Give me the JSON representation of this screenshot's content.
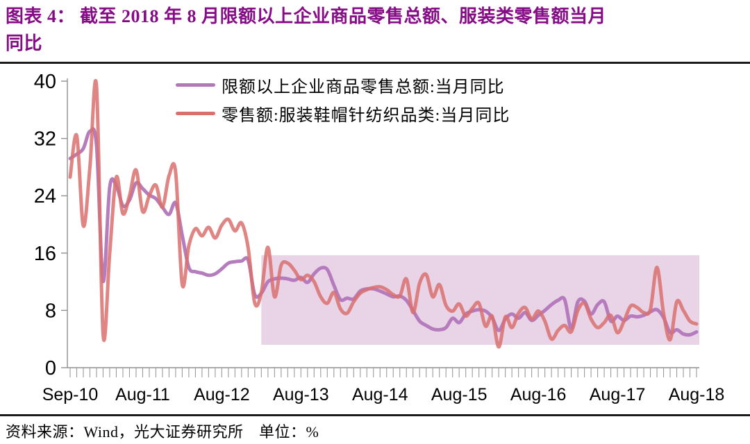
{
  "figure": {
    "title_line1": "图表 4： 截至 2018 年 8 月限额以上企业商品零售总额、服装类零售额当月",
    "title_line2": "同比",
    "title_color": "#860b86",
    "source_note": "资料来源：Wind，光大证券研究所　单位：%"
  },
  "chart_data": {
    "type": "line",
    "title": "截至2018年8月限额以上企业商品零售总额、服装类零售额当月同比",
    "ylabel": "%",
    "ylim": [
      0,
      40
    ],
    "y_ticks": [
      0,
      8,
      16,
      24,
      32,
      40
    ],
    "grid": false,
    "legend_position": "top-center",
    "x_axis_ticks": [
      "Sep-10",
      "Aug-11",
      "Aug-12",
      "Aug-13",
      "Aug-14",
      "Aug-15",
      "Aug-16",
      "Aug-17",
      "Aug-18"
    ],
    "x": [
      "Sep-10",
      "Oct-10",
      "Nov-10",
      "Dec-10",
      "Jan-11",
      "Feb-11",
      "Mar-11",
      "Apr-11",
      "May-11",
      "Jun-11",
      "Jul-11",
      "Aug-11",
      "Sep-11",
      "Oct-11",
      "Nov-11",
      "Dec-11",
      "Jan-12",
      "Feb-12",
      "Mar-12",
      "Apr-12",
      "May-12",
      "Jun-12",
      "Jul-12",
      "Aug-12",
      "Sep-12",
      "Oct-12",
      "Nov-12",
      "Dec-12",
      "Jan-13",
      "Feb-13",
      "Mar-13",
      "Apr-13",
      "May-13",
      "Jun-13",
      "Jul-13",
      "Aug-13",
      "Sep-13",
      "Oct-13",
      "Nov-13",
      "Dec-13",
      "Jan-14",
      "Feb-14",
      "Mar-14",
      "Apr-14",
      "May-14",
      "Jun-14",
      "Jul-14",
      "Aug-14",
      "Sep-14",
      "Oct-14",
      "Nov-14",
      "Dec-14",
      "Jan-15",
      "Feb-15",
      "Mar-15",
      "Apr-15",
      "May-15",
      "Jun-15",
      "Jul-15",
      "Aug-15",
      "Sep-15",
      "Oct-15",
      "Nov-15",
      "Dec-15",
      "Jan-16",
      "Feb-16",
      "Mar-16",
      "Apr-16",
      "May-16",
      "Jun-16",
      "Jul-16",
      "Aug-16",
      "Sep-16",
      "Oct-16",
      "Nov-16",
      "Dec-16",
      "Jan-17",
      "Feb-17",
      "Mar-17",
      "Apr-17",
      "May-17",
      "Jun-17",
      "Jul-17",
      "Aug-17",
      "Sep-17",
      "Oct-17",
      "Nov-17",
      "Dec-17",
      "Jan-18",
      "Feb-18",
      "Mar-18",
      "Apr-18",
      "May-18",
      "Jun-18",
      "Jul-18",
      "Aug-18"
    ],
    "series": [
      {
        "name": "限额以上企业商品零售总额:当月同比",
        "color": "#b276b9",
        "values": [
          29.2,
          29.8,
          30.6,
          33.0,
          31.0,
          12.1,
          25.2,
          25.4,
          22.6,
          23.4,
          25.8,
          25.0,
          24.1,
          23.6,
          22.4,
          21.4,
          23.0,
          18.5,
          14.0,
          13.4,
          13.2,
          12.9,
          13.1,
          13.8,
          14.6,
          14.8,
          14.9,
          15.0,
          10.2,
          10.4,
          12.0,
          12.4,
          12.5,
          12.4,
          12.2,
          12.6,
          11.9,
          13.1,
          13.9,
          13.7,
          11.5,
          9.5,
          9.7,
          9.6,
          10.7,
          11.0,
          11.0,
          10.7,
          10.3,
          9.9,
          10.0,
          9.4,
          8.0,
          6.5,
          5.9,
          5.4,
          5.3,
          5.6,
          6.9,
          6.3,
          7.5,
          7.9,
          8.1,
          7.9,
          7.0,
          5.2,
          6.8,
          7.5,
          6.9,
          7.7,
          6.6,
          7.3,
          8.0,
          8.8,
          9.4,
          9.5,
          5.5,
          9.2,
          9.3,
          7.5,
          8.8,
          9.2,
          6.5,
          7.2,
          6.6,
          7.2,
          7.1,
          7.3,
          7.8,
          8.1,
          7.0,
          4.9,
          5.3,
          4.7,
          4.6,
          5.0
        ]
      },
      {
        "name": "零售额:服装鞋帽针纺织品类:当月同比",
        "color": "#d9706e",
        "values": [
          26.6,
          32.4,
          19.8,
          28.0,
          39.3,
          4.6,
          16.0,
          26.6,
          21.5,
          24.0,
          27.6,
          21.8,
          24.0,
          25.5,
          22.4,
          26.8,
          27.3,
          11.6,
          17.0,
          19.4,
          18.4,
          19.6,
          18.1,
          19.9,
          20.7,
          19.1,
          20.2,
          16.7,
          9.0,
          10.5,
          16.8,
          9.9,
          14.3,
          14.6,
          13.6,
          12.3,
          12.9,
          12.0,
          9.9,
          9.0,
          10.5,
          8.2,
          7.6,
          9.2,
          10.4,
          10.9,
          11.2,
          11.3,
          10.9,
          10.2,
          10.0,
          12.4,
          7.7,
          11.8,
          13.0,
          9.9,
          11.6,
          8.7,
          7.9,
          8.9,
          7.2,
          8.3,
          9.0,
          5.8,
          7.2,
          2.9,
          7.1,
          5.6,
          7.6,
          8.4,
          6.8,
          7.9,
          6.5,
          4.0,
          5.2,
          5.9,
          5.0,
          8.0,
          9.0,
          6.8,
          5.6,
          6.3,
          7.3,
          4.9,
          6.5,
          8.6,
          8.4,
          7.7,
          8.1,
          14.0,
          7.6,
          3.9,
          9.2,
          8.0,
          6.5,
          6.1
        ]
      }
    ],
    "highlight_band": {
      "from": "Feb-13",
      "to": "Aug-18",
      "value_top": 15.7,
      "value_bottom": 3.2,
      "color": "#e8d3e7"
    }
  }
}
